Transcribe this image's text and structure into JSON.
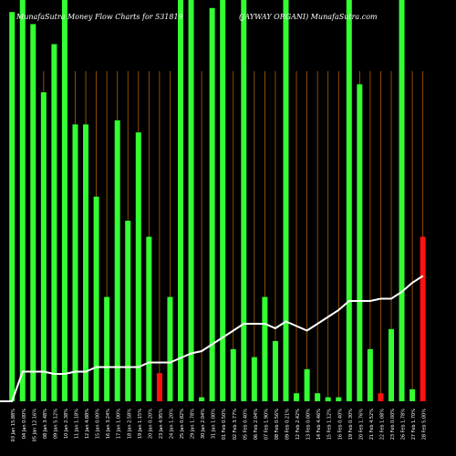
{
  "header": {
    "left_title": "MunafaSutra Money Flow  Charts for 531819",
    "right_title": "(JAYWAY ORGANI) MunafaSutra.com"
  },
  "colors": {
    "background": "#000000",
    "bar_up": "#33ff33",
    "bar_down": "#ff1111",
    "flow_line": "#ffffff",
    "grid_line": "#b25f00",
    "label_text": "#ffffff"
  },
  "chart_data": {
    "type": "bar",
    "title": "MunafaSutra Money Flow  Charts for 531819",
    "subtitle": "(JAYWAY ORGANI) MunafaSutra.com",
    "grid": "vertical",
    "categories": [
      "03 Jan 2024",
      "04 Jan 2024",
      "05 Jan 2024",
      "08 Jan 2024",
      "09 Jan 2024",
      "10 Jan 2024",
      "11 Jan 2024",
      "12 Jan 2024",
      "15 Jan 2024",
      "16 Jan 2024",
      "17 Jan 2024",
      "18 Jan 2024",
      "19 Jan 2024",
      "20 Jan 2024",
      "23 Jan 2024",
      "24 Jan 2024",
      "25 Jan 2024",
      "29 Jan 2024",
      "30 Jan 2024",
      "31 Jan 2024",
      "01 Feb 2024",
      "02 Feb 2024",
      "05 Feb 2024",
      "06 Feb 2024",
      "07 Feb 2024",
      "08 Feb 2024",
      "09 Feb 2024",
      "12 Feb 2024",
      "13 Feb 2024",
      "14 Feb 2024",
      "15 Feb 2024",
      "16 Feb 2024",
      "19 Feb 2024",
      "20 Feb 2024",
      "21 Feb 2024",
      "22 Feb 2024",
      "23 Feb 2024",
      "26 Feb 2024",
      "27 Feb 2024",
      "28 Feb 2024"
    ],
    "x_labels": [
      "03 Jan 15.88%",
      "04 Jan 0.00%",
      "05 Jan 12.16%",
      "08 Jan 3.48%",
      "09 Jan 5.12%",
      "10 Jan 2.38%",
      "11 Jan 1.18%",
      "12 Jan 4.88%",
      "15 Jan 0.00%",
      "16 Jan 3.24%",
      "17 Jan 1.00%",
      "18 Jan 2.58%",
      "19 Jan 1.15%",
      "20 Jan 0.20%",
      "23 Jan 4.95%",
      "24 Jan 1.20%",
      "25 Jan 0.82%",
      "29 Jan 1.78%",
      "30 Jan 2.04%",
      "31 Jan 1.00%",
      "01 Feb 0.50%",
      "02 Feb 3.77%",
      "05 Feb 0.40%",
      "06 Feb 2.04%",
      "07 Feb 1.90%",
      "08 Feb 0.56%",
      "09 Feb 0.21%",
      "12 Feb 2.42%",
      "13 Feb 0.00%",
      "14 Feb 4.46%",
      "15 Feb 1.12%",
      "16 Feb 0.40%",
      "19 Feb 0.30%",
      "20 Feb 1.76%",
      "21 Feb 4.52%",
      "22 Feb 1.08%",
      "23 Feb 0.00%",
      "26 Feb 1.78%",
      "27 Feb 1.70%",
      "28 Feb 5.00%"
    ],
    "y_range": [
      0,
      100
    ],
    "flow_range": [
      0,
      100
    ],
    "series": [
      {
        "kind": "money-flow-bar",
        "values": [
          97,
          100,
          94,
          77,
          89,
          100,
          69,
          69,
          51,
          26,
          70,
          45,
          67,
          41,
          7,
          26,
          100,
          100,
          1,
          98,
          100,
          13,
          100,
          11,
          26,
          15,
          100,
          2,
          8,
          2,
          1,
          1,
          100,
          79,
          13,
          2,
          18,
          100,
          3,
          41
        ],
        "direction": [
          "up",
          "up",
          "up",
          "up",
          "up",
          "up",
          "up",
          "up",
          "up",
          "up",
          "up",
          "up",
          "up",
          "up",
          "down",
          "up",
          "up",
          "up",
          "up",
          "up",
          "up",
          "up",
          "up",
          "up",
          "up",
          "up",
          "up",
          "up",
          "up",
          "up",
          "up",
          "up",
          "up",
          "up",
          "up",
          "down",
          "up",
          "up",
          "up",
          "down"
        ]
      },
      {
        "kind": "cumulative-flow-line",
        "values": [
          0,
          13,
          13,
          13,
          12,
          12,
          13,
          13,
          15,
          15,
          15,
          15,
          15,
          17,
          17,
          17,
          19,
          21,
          22,
          25,
          28,
          31,
          34,
          34,
          34,
          32,
          35,
          33,
          31,
          34,
          37,
          40,
          44,
          44,
          44,
          45,
          45,
          48,
          52,
          55
        ]
      }
    ]
  }
}
